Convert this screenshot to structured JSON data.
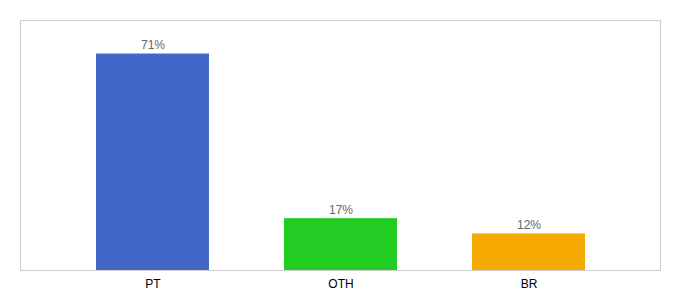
{
  "chart_data": {
    "type": "bar",
    "categories": [
      "PT",
      "OTH",
      "BR"
    ],
    "values": [
      71,
      17,
      12
    ],
    "value_labels": [
      "71%",
      "17%",
      "12%"
    ],
    "colors": [
      "#4168c9",
      "#22cc22",
      "#f5a800"
    ],
    "ylim": [
      0,
      82
    ],
    "data_labels": true,
    "tick_labels": "x",
    "grid": false
  }
}
